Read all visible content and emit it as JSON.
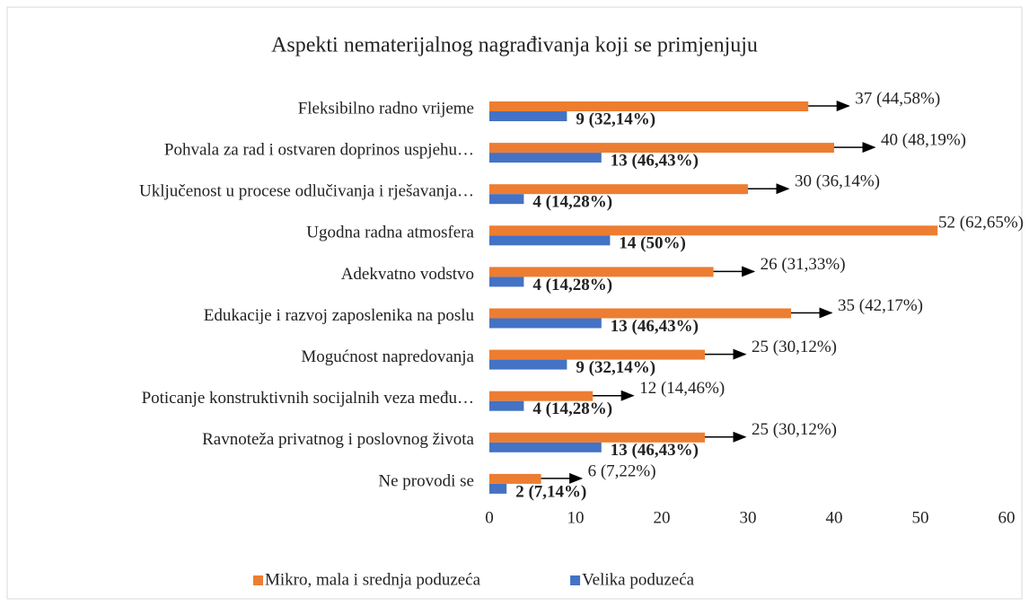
{
  "chart_data": {
    "type": "bar",
    "orientation": "horizontal",
    "title": "Aspekti nematerijalnog nagrađivanja koji se primjenjuju",
    "categories": [
      "Fleksibilno radno vrijeme",
      "Pohvala za rad i ostvaren doprinos uspjehu…",
      "Uključenost u procese odlučivanja i rješavanja…",
      "Ugodna radna atmosfera",
      "Adekvatno vodstvo",
      "Edukacije i razvoj zaposlenika na poslu",
      "Mogućnost napredovanja",
      "Poticanje konstruktivnih socijalnih veza među…",
      "Ravnoteža privatnog i poslovnog života",
      "Ne provodi se"
    ],
    "series": [
      {
        "name": "Mikro, mala i srednja poduzeća",
        "color": "#ed7d31",
        "values": [
          37,
          40,
          30,
          52,
          26,
          35,
          25,
          12,
          25,
          6
        ],
        "value_labels": [
          "37 (44,58%)",
          "40 (48,19%)",
          "30 (36,14%)",
          "52 (62,65%)",
          "26 (31,33%)",
          "35 (42,17%)",
          "25 (30,12%)",
          "12 (14,46%)",
          "25 (30,12%)",
          "6 (7,22%)"
        ]
      },
      {
        "name": "Velika poduzeća",
        "color": "#4472c4",
        "values": [
          9,
          13,
          4,
          14,
          4,
          13,
          9,
          4,
          13,
          2
        ],
        "value_labels": [
          "9 (32,14%)",
          "13 (46,43%)",
          "4 (14,28%)",
          "14 (50%)",
          "4 (14,28%)",
          "13 (46,43%)",
          "9 (32,14%)",
          "4 (14,28%)",
          "13 (46,43%)",
          "2 (7,14%)"
        ]
      }
    ],
    "xlim": [
      0,
      60
    ],
    "xticks": [
      0,
      10,
      20,
      30,
      40,
      50,
      60
    ],
    "grid": false,
    "legend": "bottom"
  }
}
